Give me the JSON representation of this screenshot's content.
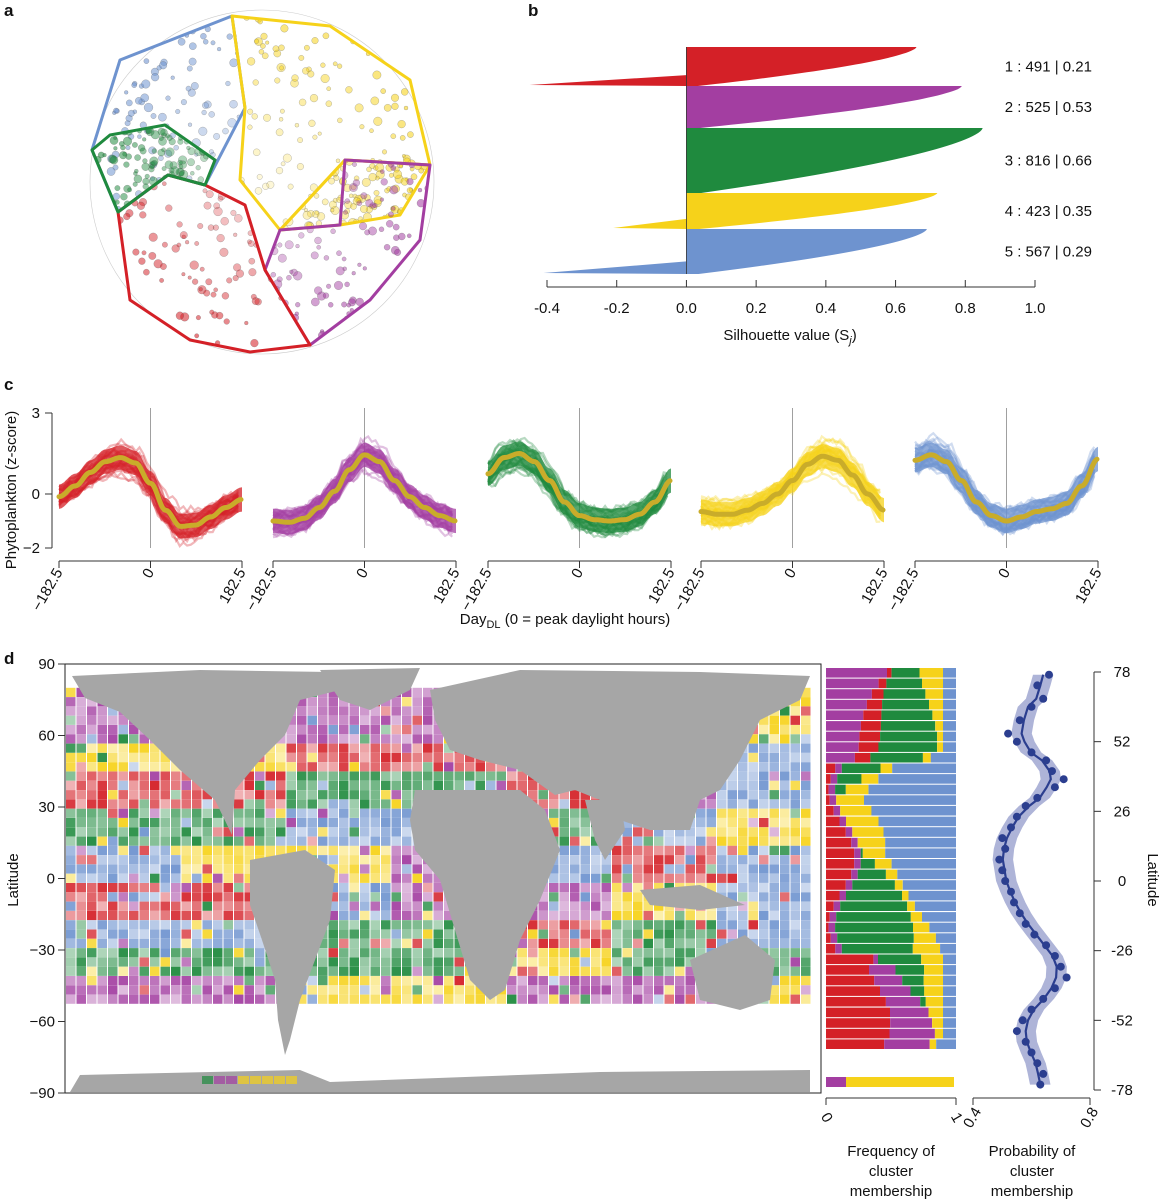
{
  "colors": {
    "c1_red": "#d42027",
    "c2_purple": "#a33ea1",
    "c3_green": "#1f8a3e",
    "c4_yellow": "#f6d21a",
    "c5_blue": "#6e93cf",
    "mean_curve": "#c9ac2a",
    "land": "#a6a6a6",
    "prob_line": "#2b3e8f",
    "prob_band": "#aeb4d8"
  },
  "panels": {
    "a": {
      "letter": "a"
    },
    "b": {
      "letter": "b"
    },
    "c": {
      "letter": "c"
    },
    "d": {
      "letter": "d"
    }
  },
  "chart_data": [
    {
      "panel": "b",
      "type": "bar",
      "description_of_marks": "silhouette profile per cluster",
      "xlabel": "Silhouette value (S",
      "xlabel_sub": "j",
      "xlabel_close": ")",
      "xlim": [
        -0.4,
        1.0
      ],
      "xticks": [
        "-0.4",
        "-0.2",
        "0.0",
        "0.2",
        "0.4",
        "0.6",
        "0.8",
        "1.0"
      ],
      "series": [
        {
          "cluster": "1",
          "count": "491",
          "mean": "0.21",
          "max": 0.66,
          "min": -0.45,
          "label": "1 :  491  |  0.21"
        },
        {
          "cluster": "2",
          "count": "525",
          "mean": "0.53",
          "max": 0.79,
          "min": 0.0,
          "label": "2 :  525  |  0.53"
        },
        {
          "cluster": "3",
          "count": "816",
          "mean": "0.66",
          "max": 0.85,
          "min": 0.0,
          "label": "3 :  816  |  0.66"
        },
        {
          "cluster": "4",
          "count": "423",
          "mean": "0.35",
          "max": 0.72,
          "min": -0.21,
          "label": "4 :  423  |  0.35"
        },
        {
          "cluster": "5",
          "count": "567",
          "mean": "0.29",
          "max": 0.69,
          "min": -0.41,
          "label": "5 :  567  |  0.29"
        }
      ]
    },
    {
      "panel": "c",
      "type": "line",
      "ylabel": "Phytoplankton (z-score)",
      "xlabel": "Day",
      "xlabel_sub": "DL",
      "xlabel_rest": " (0 = peak daylight hours)",
      "xlim": [
        -182.5,
        182.5
      ],
      "ylim": [
        -2,
        3
      ],
      "yticks": [
        "3",
        "0",
        "−2"
      ],
      "xticks": [
        "−182.5",
        "0",
        "182.5"
      ],
      "x": [
        -182.5,
        -150,
        -120,
        -90,
        -60,
        -30,
        0,
        30,
        60,
        90,
        120,
        150,
        182.5
      ],
      "series": [
        {
          "cluster": "1",
          "mean_values": [
            -0.1,
            0.3,
            0.8,
            1.2,
            1.35,
            1.15,
            0.4,
            -0.6,
            -1.2,
            -1.15,
            -0.85,
            -0.5,
            -0.2
          ]
        },
        {
          "cluster": "2",
          "mean_values": [
            -1.0,
            -1.05,
            -0.9,
            -0.5,
            0.1,
            0.9,
            1.45,
            1.2,
            0.5,
            -0.1,
            -0.5,
            -0.8,
            -1.0
          ]
        },
        {
          "cluster": "3",
          "mean_values": [
            0.75,
            1.35,
            1.5,
            1.2,
            0.5,
            -0.3,
            -0.8,
            -0.95,
            -1.0,
            -0.95,
            -0.75,
            -0.3,
            0.5
          ]
        },
        {
          "cluster": "4",
          "mean_values": [
            -0.65,
            -0.75,
            -0.75,
            -0.6,
            -0.35,
            0.0,
            0.5,
            1.1,
            1.4,
            1.25,
            0.7,
            0.0,
            -0.6
          ]
        },
        {
          "cluster": "5",
          "mean_values": [
            1.25,
            1.45,
            1.2,
            0.5,
            -0.3,
            -0.8,
            -1.0,
            -0.85,
            -0.65,
            -0.55,
            -0.35,
            0.3,
            1.3
          ]
        }
      ]
    },
    {
      "panel": "d-map",
      "type": "heatmap",
      "ylabel": "Latitude",
      "yticks": [
        "90",
        "60",
        "30",
        "0",
        "−30",
        "−60",
        "−90"
      ],
      "ylim": [
        -90,
        90
      ]
    },
    {
      "panel": "d-frequency",
      "type": "bar",
      "xlabel": "Frequency of cluster membership",
      "xlabel_lines": [
        "Frequency of",
        "cluster",
        "membership"
      ],
      "xticks": [
        "0",
        "1"
      ],
      "xlim": [
        0,
        1
      ]
    },
    {
      "panel": "d-probability",
      "type": "line",
      "xlabel": "Probability of cluster membership",
      "xlabel_lines": [
        "Probability of",
        "cluster",
        "membership"
      ],
      "ylabel": "Latitude",
      "xticks": [
        "0.4",
        "0.8"
      ],
      "xlim": [
        0.4,
        0.8
      ],
      "ylim": [
        -78,
        78
      ],
      "yticks": [
        "78",
        "52",
        "26",
        "0",
        "-26",
        "-52",
        "-78"
      ],
      "points": {
        "lat": [
          77,
          73,
          68,
          65,
          60,
          55,
          52,
          48,
          45,
          41,
          38,
          35,
          31,
          28,
          24,
          20,
          16,
          12,
          8,
          4,
          0,
          -4,
          -8,
          -12,
          -16,
          -20,
          -24,
          -28,
          -32,
          -36,
          -40,
          -44,
          -48,
          -52,
          -56,
          -60,
          -64,
          -68,
          -72,
          -76
        ],
        "prob": [
          0.66,
          0.62,
          0.64,
          0.6,
          0.56,
          0.52,
          0.55,
          0.6,
          0.65,
          0.67,
          0.71,
          0.68,
          0.62,
          0.58,
          0.55,
          0.53,
          0.5,
          0.51,
          0.49,
          0.5,
          0.51,
          0.53,
          0.54,
          0.56,
          0.58,
          0.61,
          0.65,
          0.68,
          0.7,
          0.72,
          0.68,
          0.64,
          0.6,
          0.57,
          0.55,
          0.58,
          0.6,
          0.62,
          0.64,
          0.63
        ]
      }
    }
  ]
}
